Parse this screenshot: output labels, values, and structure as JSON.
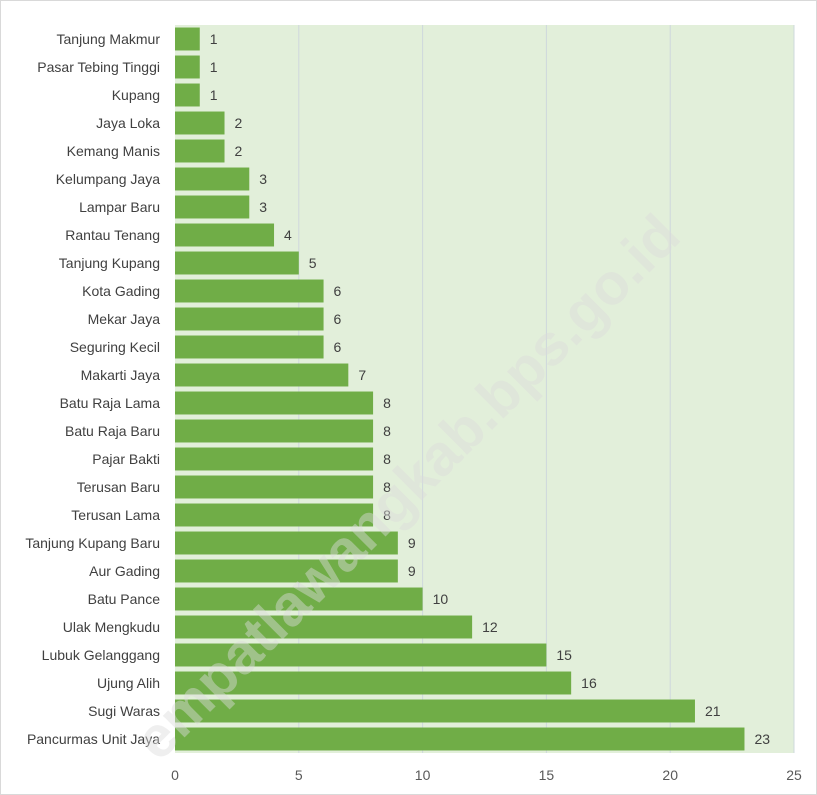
{
  "watermark": "empatlawangkab.bps.go.id",
  "colors": {
    "bar": "#70ad47",
    "plot_bg": "#e2efda",
    "grid": "#cfd8dc",
    "text": "#404040"
  },
  "chart_data": {
    "type": "bar",
    "orientation": "horizontal",
    "title": "",
    "xlabel": "",
    "ylabel": "",
    "xlim": [
      0,
      25
    ],
    "x_ticks": [
      0,
      5,
      10,
      15,
      20,
      25
    ],
    "grid": true,
    "legend": "none",
    "categories": [
      "Tanjung Makmur",
      "Pasar Tebing Tinggi",
      "Kupang",
      "Jaya Loka",
      "Kemang Manis",
      "Kelumpang Jaya",
      "Lampar Baru",
      "Rantau Tenang",
      "Tanjung Kupang",
      "Kota Gading",
      "Mekar Jaya",
      "Seguring Kecil",
      "Makarti Jaya",
      "Batu Raja Lama",
      "Batu Raja Baru",
      "Pajar Bakti",
      "Terusan Baru",
      "Terusan Lama",
      "Tanjung Kupang Baru",
      "Aur Gading",
      "Batu Pance",
      "Ulak Mengkudu",
      "Lubuk Gelanggang",
      "Ujung Alih",
      "Sugi Waras",
      "Pancurmas Unit Jaya"
    ],
    "values": [
      1,
      1,
      1,
      2,
      2,
      3,
      3,
      4,
      5,
      6,
      6,
      6,
      7,
      8,
      8,
      8,
      8,
      8,
      9,
      9,
      10,
      12,
      15,
      16,
      21,
      23
    ]
  }
}
